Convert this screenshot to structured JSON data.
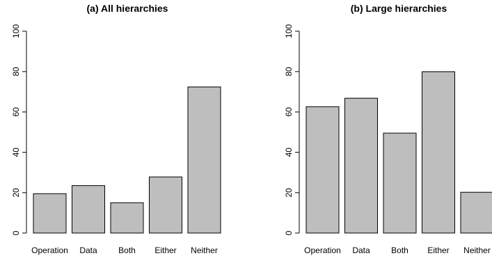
{
  "chart_data": [
    {
      "type": "bar",
      "title": "(a) All hierarchies",
      "categories": [
        "Operation",
        "Data",
        "Both",
        "Either",
        "Neither"
      ],
      "values": [
        19.5,
        23.5,
        15,
        27.8,
        72.4
      ],
      "ylim": [
        0,
        100
      ],
      "yticks": [
        0,
        20,
        40,
        60,
        80,
        100
      ],
      "xlabel": "",
      "ylabel": "",
      "grid": false,
      "bar_color": "#bebebe"
    },
    {
      "type": "bar",
      "title": "(b) Large hierarchies",
      "categories": [
        "Operation",
        "Data",
        "Both",
        "Either",
        "Neither"
      ],
      "values": [
        62.6,
        66.8,
        49.5,
        79.9,
        20.2
      ],
      "ylim": [
        0,
        100
      ],
      "yticks": [
        0,
        20,
        40,
        60,
        80,
        100
      ],
      "xlabel": "",
      "ylabel": "",
      "grid": false,
      "bar_color": "#bebebe"
    }
  ]
}
